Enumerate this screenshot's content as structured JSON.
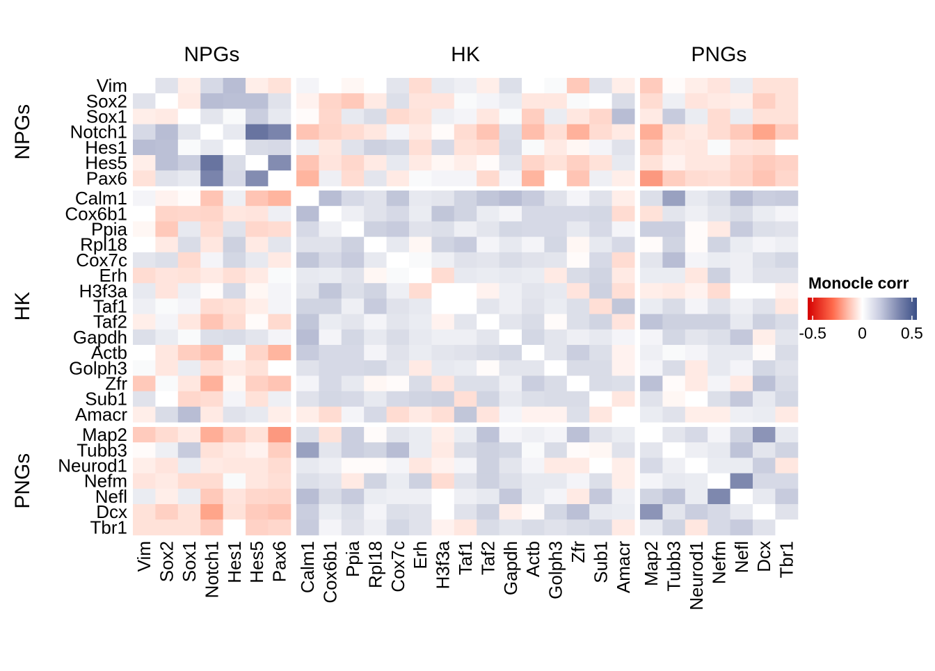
{
  "chart_data": {
    "type": "heatmap",
    "symmetric": true,
    "diagonal_value": 0,
    "genes": [
      "Vim",
      "Sox2",
      "Sox1",
      "Notch1",
      "Hes1",
      "Hes5",
      "Pax6",
      "Calm1",
      "Cox6b1",
      "Ppia",
      "Rpl18",
      "Cox7c",
      "Erh",
      "H3f3a",
      "Taf1",
      "Taf2",
      "Gapdh",
      "Actb",
      "Golph3",
      "Zfr",
      "Sub1",
      "Amacr",
      "Map2",
      "Tubb3",
      "Neurod1",
      "Nefm",
      "Nefl",
      "Dcx",
      "Tbr1"
    ],
    "groups": [
      {
        "label": "NPGs",
        "size": 7
      },
      {
        "label": "HK",
        "size": 15
      },
      {
        "label": "PNGs",
        "size": 7
      }
    ],
    "matrix_upper": [
      [
        0.07,
        -0.04,
        0.1,
        0.2,
        -0.04,
        -0.08,
        0.02,
        0,
        -0.02,
        0,
        0.06,
        -0.1,
        0.05,
        0.03,
        -0.04,
        0.08,
        0,
        0.01,
        -0.18,
        0.07,
        -0.04,
        -0.17,
        -0.01,
        -0.04,
        -0.07,
        0.04,
        -0.08,
        -0.08
      ],
      [
        -0.05,
        0.2,
        0.19,
        0.19,
        0.07,
        -0.03,
        -0.13,
        -0.18,
        -0.05,
        0.08,
        -0.07,
        -0.07,
        0.01,
        0.02,
        0.04,
        -0.06,
        -0.06,
        0.01,
        0,
        0.09,
        -0.1,
        0.03,
        -0.07,
        -0.05,
        -0.04,
        -0.15,
        -0.08
      ],
      [
        0.06,
        0.01,
        0.14,
        0.05,
        -0.01,
        -0.12,
        0.05,
        0.09,
        -0.11,
        -0.08,
        0.03,
        0.02,
        -0.06,
        0.01,
        -0.16,
        0.04,
        -0.06,
        -0.12,
        0.2,
        -0.05,
        0.15,
        0.04,
        -0.1,
        0.04,
        -0.08,
        -0.08
      ],
      [
        0.05,
        0.38,
        0.34,
        -0.2,
        -0.13,
        -0.1,
        -0.06,
        0.02,
        -0.05,
        -0.01,
        -0.1,
        -0.2,
        0.08,
        -0.22,
        -0.09,
        -0.26,
        -0.1,
        -0.05,
        -0.27,
        -0.08,
        -0.05,
        -0.1,
        -0.18,
        -0.3,
        -0.17
      ],
      [
        0.09,
        0.1,
        0.03,
        -0.06,
        0.07,
        0.13,
        0.11,
        -0.09,
        0.1,
        -0.08,
        -0.1,
        0.09,
        0.01,
        -0.05,
        -0.02,
        0.02,
        0.07,
        -0.16,
        -0.05,
        -0.06,
        0.01,
        -0.07,
        -0.08,
        0
      ],
      [
        0.32,
        -0.2,
        -0.07,
        -0.12,
        -0.05,
        0.05,
        -0.05,
        -0.02,
        -0.04,
        -0.01,
        0.06,
        -0.13,
        -0.08,
        -0.15,
        -0.08,
        0.05,
        -0.08,
        -0.03,
        -0.06,
        -0.06,
        -0.12,
        -0.17,
        -0.14
      ],
      [
        -0.25,
        0.03,
        -0.1,
        0.06,
        -0.05,
        0.01,
        0.02,
        0.02,
        -0.11,
        0.02,
        -0.25,
        0,
        -0.2,
        0.03,
        -0.04,
        -0.32,
        -0.16,
        -0.1,
        -0.09,
        -0.13,
        -0.2,
        -0.12
      ],
      [
        0.2,
        0.1,
        0.07,
        0.17,
        0.05,
        0.06,
        0.12,
        0.17,
        0.2,
        0.15,
        0.07,
        0.02,
        0.07,
        -0.04,
        0.08,
        0.27,
        0.05,
        0.08,
        0.2,
        0.14,
        0.15
      ],
      [
        0.03,
        0.07,
        0.1,
        0.04,
        0.17,
        0.12,
        0.04,
        0.02,
        0.1,
        0.1,
        0.1,
        0.11,
        -0.1,
        -0.08,
        0.06,
        0.03,
        0.06,
        0.09,
        0.04,
        0.02
      ],
      [
        0.13,
        0.15,
        0.07,
        0.08,
        0.03,
        0.06,
        0.11,
        0.1,
        0.1,
        0.05,
        0.1,
        0.02,
        0.14,
        0.14,
        -0.01,
        -0.05,
        0.15,
        0.08,
        0.07
      ],
      [
        0.05,
        -0.02,
        0.12,
        0.15,
        0.02,
        0.05,
        0.02,
        0.11,
        -0.02,
        0.05,
        0.1,
        -0.01,
        0.12,
        -0.01,
        0.12,
        0.04,
        0.02,
        0.03
      ],
      [
        0.01,
        0.03,
        0.07,
        0.06,
        0.09,
        0.07,
        0.06,
        -0.01,
        0.1,
        -0.1,
        0.06,
        0.2,
        0.02,
        0.04,
        0.03,
        0.08,
        0.11
      ],
      [
        -0.1,
        0.05,
        0.04,
        0.05,
        0.04,
        -0.05,
        0.09,
        0.12,
        -0.05,
        0.04,
        0.04,
        -0.06,
        0.13,
        0.03,
        0.07,
        0.07
      ],
      [
        0,
        -0.03,
        0.03,
        0.06,
        0.05,
        -0.07,
        0.13,
        -0.09,
        -0.04,
        -0.05,
        -0.03,
        -0.1,
        0,
        0,
        -0.03
      ],
      [
        0.06,
        0.03,
        0.07,
        0.04,
        0.08,
        -0.09,
        0.17,
        0.04,
        0.09,
        0.02,
        0.07,
        0.03,
        0.07,
        -0.06
      ],
      [
        0.06,
        0.09,
        -0.01,
        0.08,
        0.12,
        -0.07,
        0.18,
        0.13,
        0.13,
        0.13,
        0.05,
        0.13,
        0.09
      ],
      [
        0.11,
        0.06,
        0.03,
        0.05,
        0.02,
        0.02,
        0.11,
        0.06,
        0.08,
        0.16,
        -0.04,
        0.06
      ],
      [
        0.06,
        0.14,
        0.08,
        -0.03,
        0.03,
        0.01,
        0.02,
        0.05,
        0.05,
        -0.01,
        0.09
      ],
      [
        0.09,
        0.09,
        -0.03,
        0.02,
        0.09,
        -0.05,
        0.05,
        0.02,
        0.11,
        0.07
      ],
      [
        0.09,
        0.08,
        0.19,
        -0.01,
        -0.05,
        0.02,
        -0.05,
        0.19,
        0.09
      ],
      [
        -0.06,
        0.07,
        -0.02,
        0,
        0.08,
        0.16,
        0.05,
        0.11
      ],
      [
        0.04,
        0.07,
        -0.04,
        -0.04,
        0.03,
        0.04,
        -0.05
      ],
      [
        0.06,
        0.1,
        0.02,
        0.12,
        0.3,
        0.05
      ],
      [
        0.03,
        0.05,
        0.18,
        0.06,
        0.12
      ],
      [
        0.04,
        0.04,
        0.14,
        -0.06
      ],
      [
        0.33,
        0.1,
        0.1
      ],
      [
        0.05,
        0.15
      ],
      [
        0.07
      ]
    ],
    "legend": {
      "title": "Monocle corr",
      "range": [
        -0.55,
        0.55
      ],
      "ticks": [
        -0.5,
        0,
        0.5
      ],
      "tick_labels": [
        "-0.5",
        "0",
        "0.5"
      ],
      "low_color": "#d40000",
      "mid_color": "#ffffff",
      "high_color": "#3a4f86",
      "placement": "right"
    }
  }
}
